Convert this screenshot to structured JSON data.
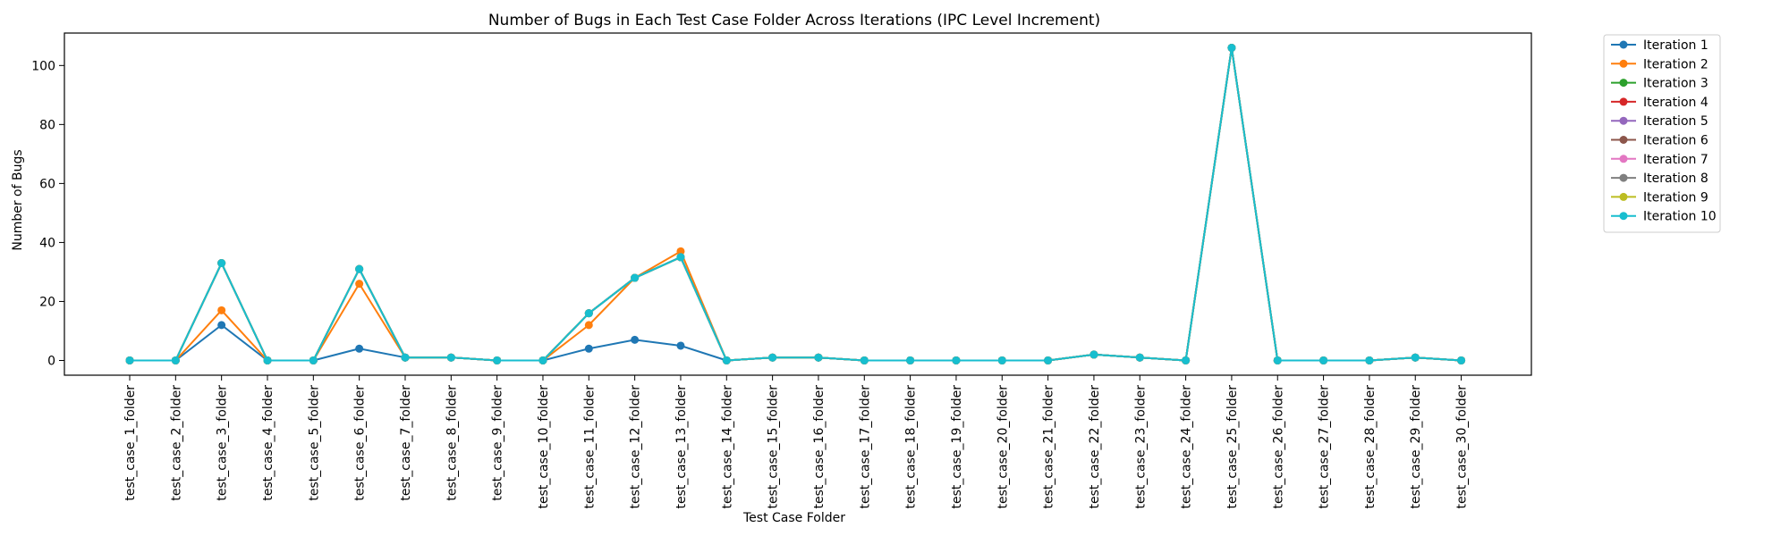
{
  "chart_data": {
    "type": "line",
    "title": "Number of Bugs in Each Test Case Folder Across Iterations (IPC Level Increment)",
    "xlabel": "Test Case Folder",
    "ylabel": "Number of Bugs",
    "ylim": [
      -5,
      111
    ],
    "yticks": [
      0,
      20,
      40,
      60,
      80,
      100
    ],
    "grid": false,
    "legend_position": "outside-top-right",
    "categories": [
      "test_case_1_folder",
      "test_case_2_folder",
      "test_case_3_folder",
      "test_case_4_folder",
      "test_case_5_folder",
      "test_case_6_folder",
      "test_case_7_folder",
      "test_case_8_folder",
      "test_case_9_folder",
      "test_case_10_folder",
      "test_case_11_folder",
      "test_case_12_folder",
      "test_case_13_folder",
      "test_case_14_folder",
      "test_case_15_folder",
      "test_case_16_folder",
      "test_case_17_folder",
      "test_case_18_folder",
      "test_case_19_folder",
      "test_case_20_folder",
      "test_case_21_folder",
      "test_case_22_folder",
      "test_case_23_folder",
      "test_case_24_folder",
      "test_case_25_folder",
      "test_case_26_folder",
      "test_case_27_folder",
      "test_case_28_folder",
      "test_case_29_folder",
      "test_case_30_folder"
    ],
    "series": [
      {
        "name": "Iteration 1",
        "color": "#1f77b4",
        "values": [
          0,
          0,
          12,
          0,
          0,
          4,
          1,
          1,
          0,
          0,
          4,
          7,
          5,
          0,
          1,
          1,
          0,
          0,
          0,
          0,
          0,
          2,
          1,
          0,
          106,
          0,
          0,
          0,
          1,
          0
        ]
      },
      {
        "name": "Iteration 2",
        "color": "#ff7f0e",
        "values": [
          0,
          0,
          17,
          0,
          0,
          26,
          1,
          1,
          0,
          0,
          12,
          28,
          37,
          0,
          1,
          1,
          0,
          0,
          0,
          0,
          0,
          2,
          1,
          0,
          106,
          0,
          0,
          0,
          1,
          0
        ]
      },
      {
        "name": "Iteration 3",
        "color": "#2ca02c",
        "values": [
          0,
          0,
          33,
          0,
          0,
          31,
          1,
          1,
          0,
          0,
          16,
          28,
          35,
          0,
          1,
          1,
          0,
          0,
          0,
          0,
          0,
          2,
          1,
          0,
          106,
          0,
          0,
          0,
          1,
          0
        ]
      },
      {
        "name": "Iteration 4",
        "color": "#d62728",
        "values": [
          0,
          0,
          33,
          0,
          0,
          31,
          1,
          1,
          0,
          0,
          16,
          28,
          35,
          0,
          1,
          1,
          0,
          0,
          0,
          0,
          0,
          2,
          1,
          0,
          106,
          0,
          0,
          0,
          1,
          0
        ]
      },
      {
        "name": "Iteration 5",
        "color": "#9467bd",
        "values": [
          0,
          0,
          33,
          0,
          0,
          31,
          1,
          1,
          0,
          0,
          16,
          28,
          35,
          0,
          1,
          1,
          0,
          0,
          0,
          0,
          0,
          2,
          1,
          0,
          106,
          0,
          0,
          0,
          1,
          0
        ]
      },
      {
        "name": "Iteration 6",
        "color": "#8c564b",
        "values": [
          0,
          0,
          33,
          0,
          0,
          31,
          1,
          1,
          0,
          0,
          16,
          28,
          35,
          0,
          1,
          1,
          0,
          0,
          0,
          0,
          0,
          2,
          1,
          0,
          106,
          0,
          0,
          0,
          1,
          0
        ]
      },
      {
        "name": "Iteration 7",
        "color": "#e377c2",
        "values": [
          0,
          0,
          33,
          0,
          0,
          31,
          1,
          1,
          0,
          0,
          16,
          28,
          35,
          0,
          1,
          1,
          0,
          0,
          0,
          0,
          0,
          2,
          1,
          0,
          106,
          0,
          0,
          0,
          1,
          0
        ]
      },
      {
        "name": "Iteration 8",
        "color": "#7f7f7f",
        "values": [
          0,
          0,
          33,
          0,
          0,
          31,
          1,
          1,
          0,
          0,
          16,
          28,
          35,
          0,
          1,
          1,
          0,
          0,
          0,
          0,
          0,
          2,
          1,
          0,
          106,
          0,
          0,
          0,
          1,
          0
        ]
      },
      {
        "name": "Iteration 9",
        "color": "#bcbd22",
        "values": [
          0,
          0,
          33,
          0,
          0,
          31,
          1,
          1,
          0,
          0,
          16,
          28,
          35,
          0,
          1,
          1,
          0,
          0,
          0,
          0,
          0,
          2,
          1,
          0,
          106,
          0,
          0,
          0,
          1,
          0
        ]
      },
      {
        "name": "Iteration 10",
        "color": "#17becf",
        "values": [
          0,
          0,
          33,
          0,
          0,
          31,
          1,
          1,
          0,
          0,
          16,
          28,
          35,
          0,
          1,
          1,
          0,
          0,
          0,
          0,
          0,
          2,
          1,
          0,
          106,
          0,
          0,
          0,
          1,
          0
        ]
      }
    ]
  }
}
